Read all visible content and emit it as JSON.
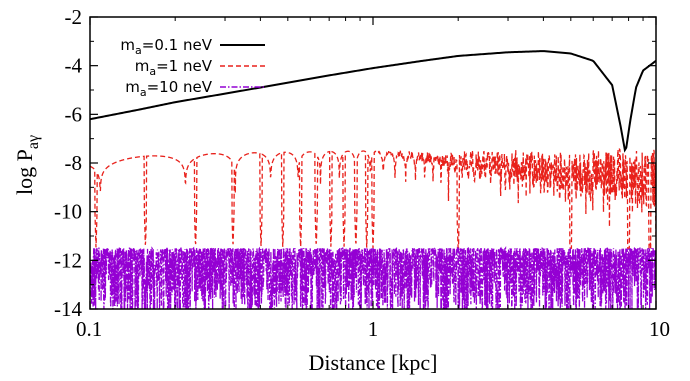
{
  "chart_data": {
    "type": "line",
    "xlabel": "Distance [kpc]",
    "ylabel": {
      "main": "log P",
      "sub": "aγ"
    },
    "xscale": "log",
    "xlim": [
      0.1,
      10
    ],
    "ylim": [
      -14,
      -2
    ],
    "x_ticks": [
      {
        "value": 0.1,
        "label": "0.1"
      },
      {
        "value": 1,
        "label": "1"
      },
      {
        "value": 10,
        "label": "10"
      }
    ],
    "y_ticks": [
      {
        "value": -14,
        "label": "-14"
      },
      {
        "value": -12,
        "label": "-12"
      },
      {
        "value": -10,
        "label": "-10"
      },
      {
        "value": -8,
        "label": "-8"
      },
      {
        "value": -6,
        "label": "-6"
      },
      {
        "value": -4,
        "label": "-4"
      },
      {
        "value": -2,
        "label": "-2"
      }
    ],
    "legend_position": "top-left",
    "series": [
      {
        "name": "m_a=0.1 neV",
        "label": {
          "main": "m",
          "sub": "a",
          "rest": "=0.1 neV"
        },
        "color": "#000000",
        "style": "solid",
        "points": [
          [
            0.1,
            -6.2
          ],
          [
            0.15,
            -5.8
          ],
          [
            0.2,
            -5.5
          ],
          [
            0.3,
            -5.15
          ],
          [
            0.5,
            -4.7
          ],
          [
            0.7,
            -4.4
          ],
          [
            1.0,
            -4.1
          ],
          [
            1.5,
            -3.8
          ],
          [
            2.0,
            -3.6
          ],
          [
            3.0,
            -3.45
          ],
          [
            4.0,
            -3.4
          ],
          [
            5.0,
            -3.5
          ],
          [
            6.0,
            -3.8
          ],
          [
            7.0,
            -4.8
          ],
          [
            7.5,
            -6.5
          ],
          [
            7.8,
            -7.6
          ],
          [
            8.1,
            -6.3
          ],
          [
            8.5,
            -4.9
          ],
          [
            9.0,
            -4.2
          ],
          [
            10.0,
            -3.8
          ]
        ]
      },
      {
        "name": "m_a=1 neV",
        "label": {
          "main": "m",
          "sub": "a",
          "rest": "=1 neV"
        },
        "color": "#e8211b",
        "style": "dashed",
        "envelope": [
          [
            0.1,
            -7.8
          ],
          [
            0.3,
            -7.6
          ],
          [
            1.0,
            -7.5
          ],
          [
            10.0,
            -7.4
          ]
        ],
        "dip_floor": -11.5,
        "dips_x": [
          0.105,
          0.157,
          0.236,
          0.32,
          0.402,
          0.48,
          0.555,
          0.63,
          0.71,
          0.79,
          0.87,
          0.95,
          1.0,
          2.0,
          5.0,
          8.0,
          9.5
        ]
      },
      {
        "name": "m_a=10 neV",
        "label": {
          "main": "m",
          "sub": "a",
          "rest": "=10 neV"
        },
        "color": "#9400d3",
        "style": "dash-dot",
        "envelope": [
          [
            0.1,
            -11.5
          ],
          [
            10.0,
            -11.5
          ]
        ],
        "floor": -14,
        "noise": "dense"
      }
    ]
  }
}
